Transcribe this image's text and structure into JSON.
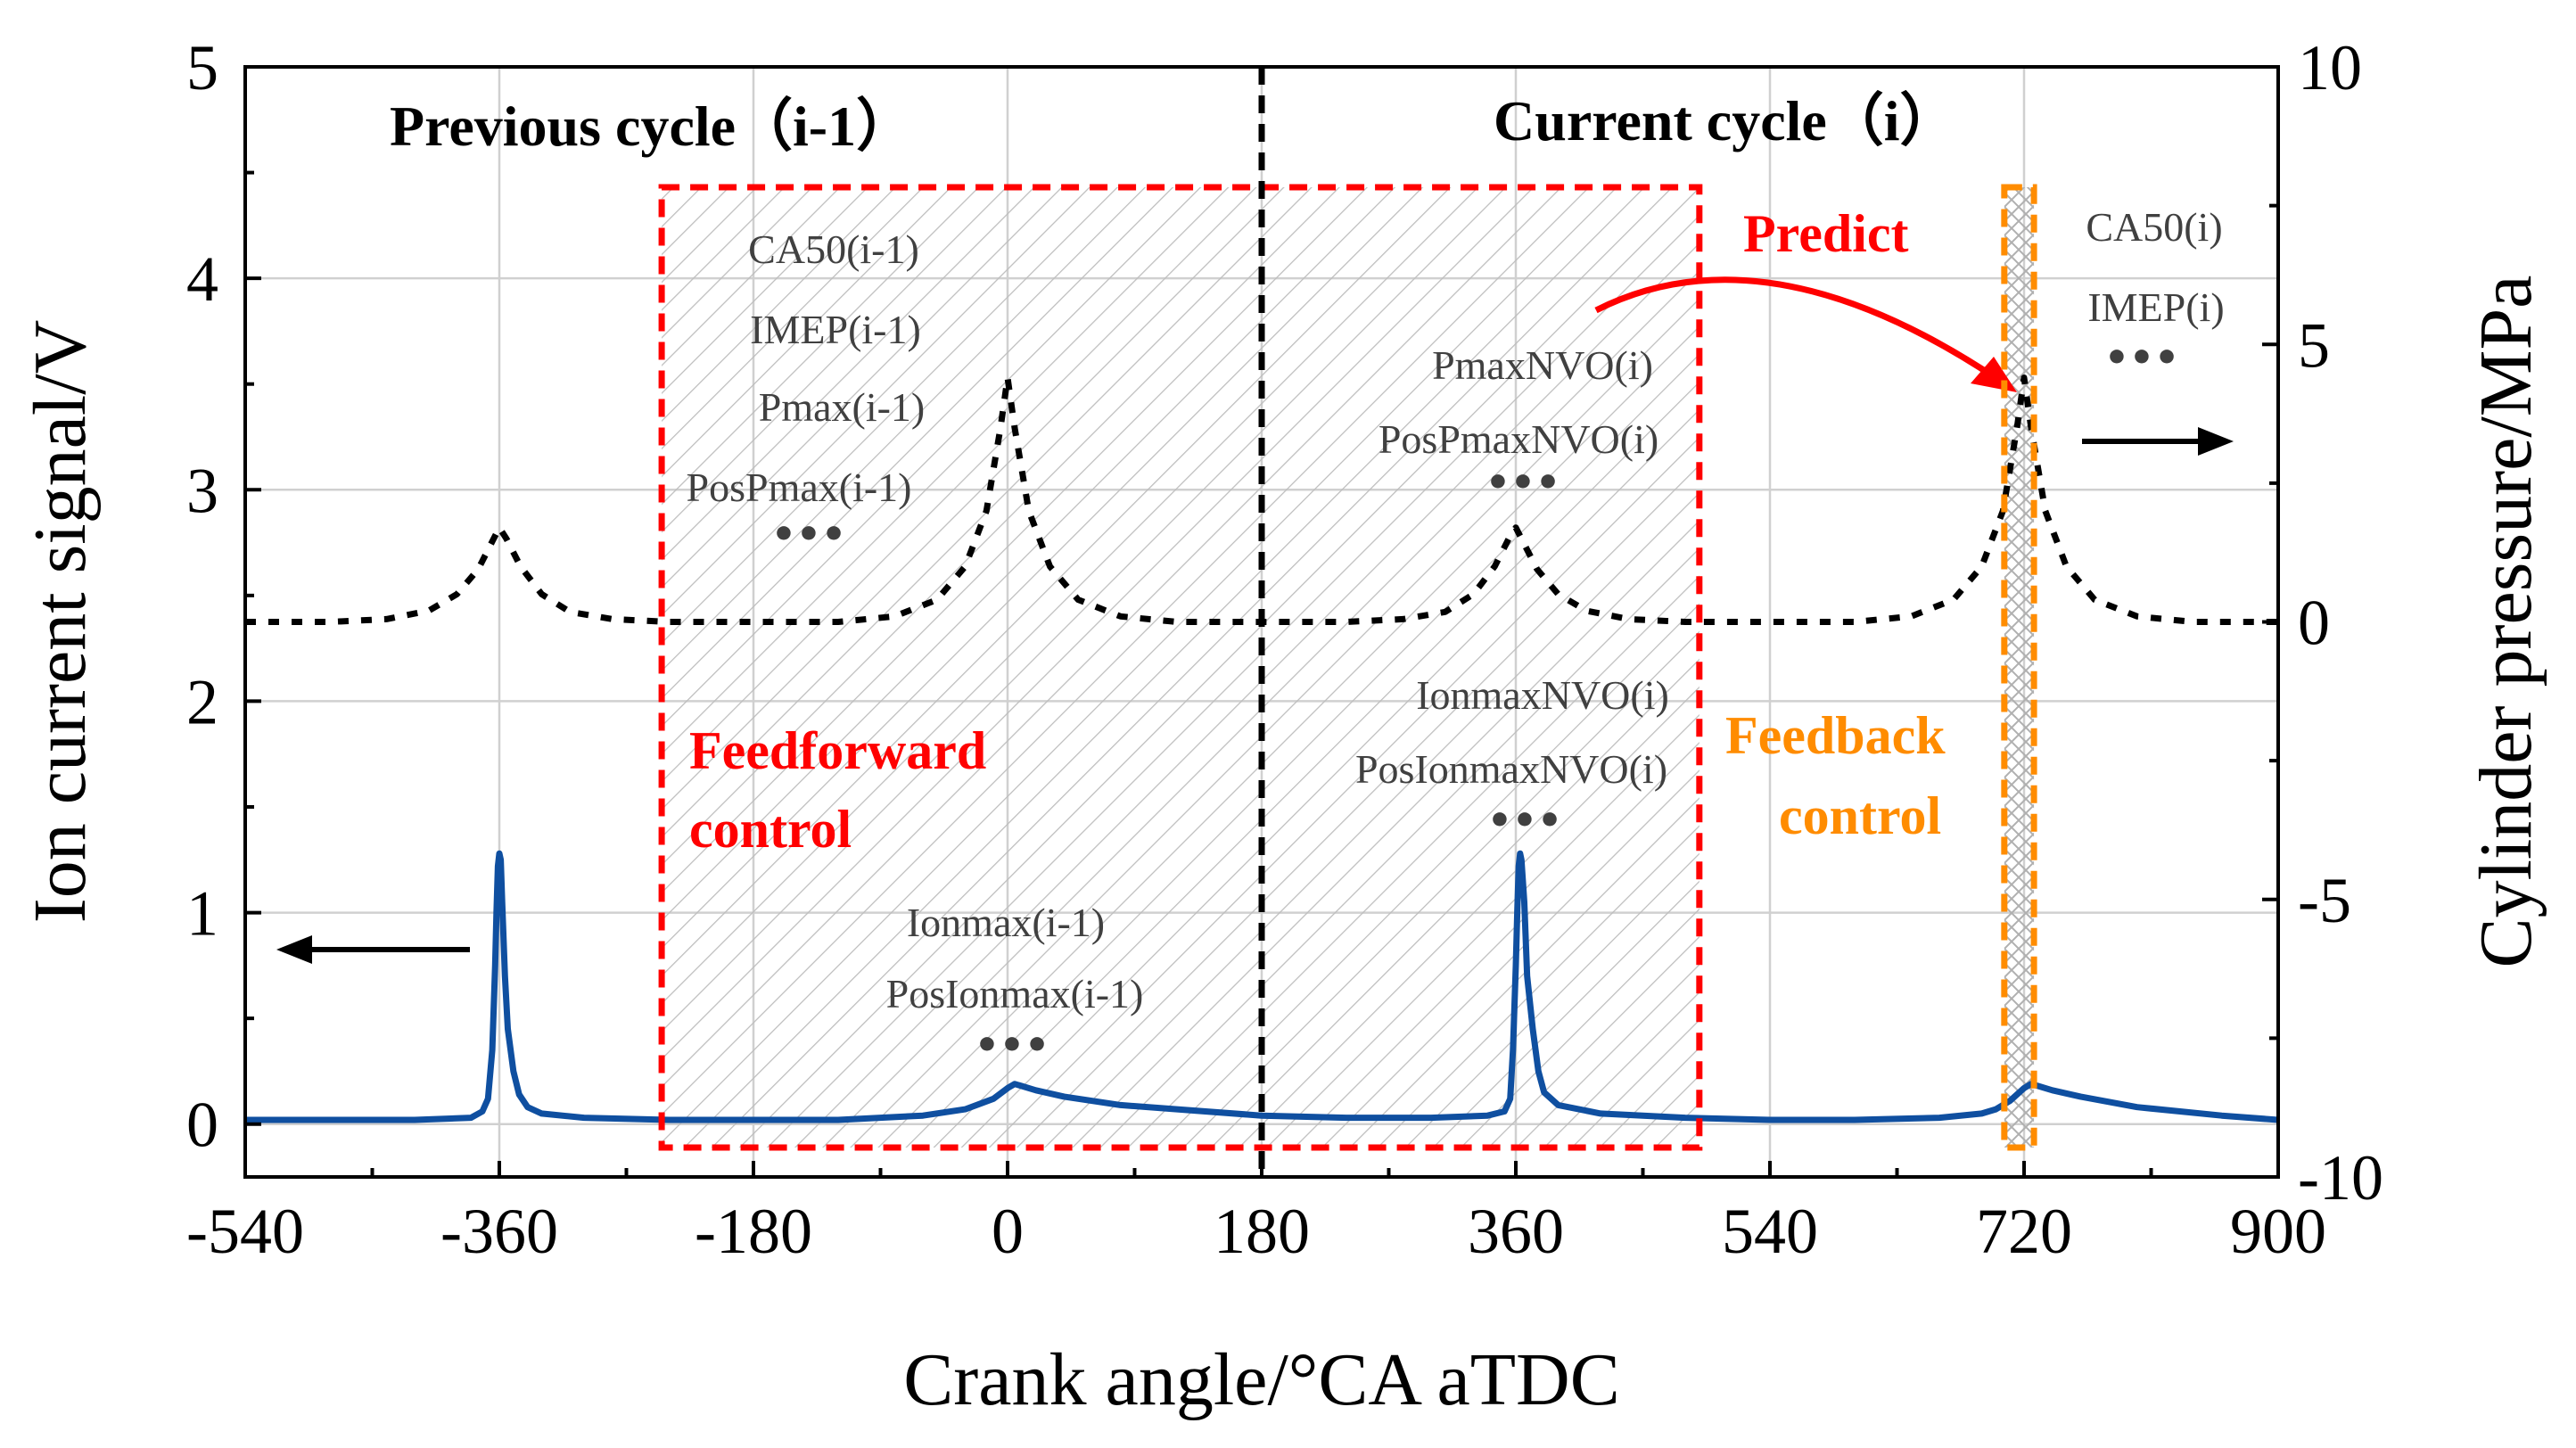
{
  "chart_data": {
    "type": "line",
    "xlabel": "Crank angle/°CA aTDC",
    "ylabel_left": "Ion current signal/V",
    "ylabel_right": "Cylinder pressure/MPa",
    "xlim": [
      -540,
      900
    ],
    "ylim_left": [
      -0.25,
      5
    ],
    "ylim_right": [
      -10,
      10
    ],
    "grid": true,
    "x_ticks": [
      -540,
      -360,
      -180,
      0,
      180,
      360,
      540,
      720,
      900
    ],
    "x_tick_labels": [
      "-540",
      "-360",
      "-180",
      "0",
      "180",
      "360",
      "540",
      "720",
      "900"
    ],
    "y_left_ticks": [
      0,
      1,
      2,
      3,
      4,
      5
    ],
    "y_left_tick_labels": [
      "0",
      "1",
      "2",
      "3",
      "4",
      "5"
    ],
    "y_right_ticks": [
      -10,
      -5,
      0,
      5,
      10
    ],
    "y_right_tick_labels": [
      "-10",
      "-5",
      "0",
      "5",
      "10"
    ],
    "series": [
      {
        "name": "Ion current signal",
        "axis": "left",
        "color": "#0f4fa0",
        "style": "solid",
        "x": [
          -540,
          -480,
          -420,
          -380,
          -372,
          -368,
          -365,
          -363,
          -362,
          -361,
          -360,
          -359,
          -358,
          -356,
          -354,
          -350,
          -346,
          -340,
          -330,
          -300,
          -240,
          -180,
          -120,
          -60,
          -30,
          -10,
          0,
          5,
          10,
          20,
          40,
          80,
          120,
          180,
          240,
          300,
          340,
          352,
          356,
          358,
          360,
          361,
          362,
          363,
          364,
          366,
          368,
          372,
          376,
          380,
          390,
          420,
          480,
          540,
          600,
          660,
          690,
          700,
          710,
          715,
          720,
          725,
          730,
          740,
          760,
          800,
          860,
          900
        ],
        "values": [
          0.02,
          0.02,
          0.02,
          0.03,
          0.06,
          0.12,
          0.35,
          0.75,
          1.0,
          1.22,
          1.28,
          1.25,
          1.05,
          0.7,
          0.45,
          0.25,
          0.14,
          0.08,
          0.05,
          0.03,
          0.02,
          0.02,
          0.02,
          0.04,
          0.07,
          0.12,
          0.17,
          0.19,
          0.18,
          0.16,
          0.13,
          0.09,
          0.07,
          0.04,
          0.03,
          0.03,
          0.04,
          0.06,
          0.12,
          0.35,
          0.75,
          1.0,
          1.22,
          1.28,
          1.25,
          1.05,
          0.7,
          0.45,
          0.25,
          0.15,
          0.09,
          0.05,
          0.03,
          0.02,
          0.02,
          0.03,
          0.05,
          0.07,
          0.11,
          0.14,
          0.17,
          0.19,
          0.18,
          0.16,
          0.13,
          0.08,
          0.04,
          0.02
        ]
      },
      {
        "name": "Cylinder pressure",
        "axis": "right",
        "color": "#000000",
        "style": "dotted",
        "x": [
          -540,
          -480,
          -440,
          -410,
          -390,
          -375,
          -365,
          -360,
          -355,
          -345,
          -330,
          -310,
          -280,
          -240,
          -180,
          -120,
          -80,
          -50,
          -30,
          -15,
          -5,
          0,
          5,
          15,
          30,
          50,
          80,
          120,
          180,
          240,
          280,
          310,
          330,
          345,
          355,
          360,
          365,
          375,
          390,
          410,
          440,
          480,
          540,
          600,
          640,
          670,
          690,
          705,
          715,
          720,
          725,
          735,
          750,
          770,
          800,
          840,
          900
        ],
        "values": [
          0,
          0,
          0.05,
          0.2,
          0.5,
          0.95,
          1.45,
          1.7,
          1.5,
          1.0,
          0.5,
          0.18,
          0.05,
          0,
          0,
          0,
          0.1,
          0.4,
          1.0,
          2.0,
          3.5,
          4.4,
          3.5,
          2.0,
          1.0,
          0.4,
          0.1,
          0,
          0,
          0,
          0.05,
          0.18,
          0.5,
          1.0,
          1.5,
          1.7,
          1.45,
          0.95,
          0.5,
          0.2,
          0.05,
          0,
          0,
          0,
          0.1,
          0.4,
          1.0,
          2.0,
          3.5,
          4.4,
          3.5,
          2.0,
          1.0,
          0.4,
          0.1,
          0,
          0
        ]
      }
    ],
    "annotations": {
      "previous_cycle": "Previous cycle（i-1）",
      "current_cycle": "Current cycle（i）",
      "prev_params": [
        "CA50(i-1)",
        "IMEP(i-1)",
        "Pmax(i-1)",
        "PosPmax(i-1)"
      ],
      "prev_ion_params": [
        "Ionmax(i-1)",
        "PosIonmax(i-1)"
      ],
      "nvo_pressure_params": [
        "PmaxNVO(i)",
        "PosPmaxNVO(i)"
      ],
      "nvo_ion_params": [
        "IonmaxNVO(i)",
        "PosIonmaxNVO(i)"
      ],
      "current_params": [
        "CA50(i)",
        "IMEP(i)"
      ],
      "ellipsis": "•••",
      "feedforward": [
        "Feedforward",
        "control"
      ],
      "feedback": [
        "Feedback",
        "control"
      ],
      "predict": "Predict",
      "feedforward_color": "#ff0000",
      "feedback_color": "#ff8c00",
      "feedforward_x_range": [
        -245,
        490
      ],
      "feedback_x_range": [
        706,
        727
      ],
      "cycle_divider_x": 180
    }
  }
}
